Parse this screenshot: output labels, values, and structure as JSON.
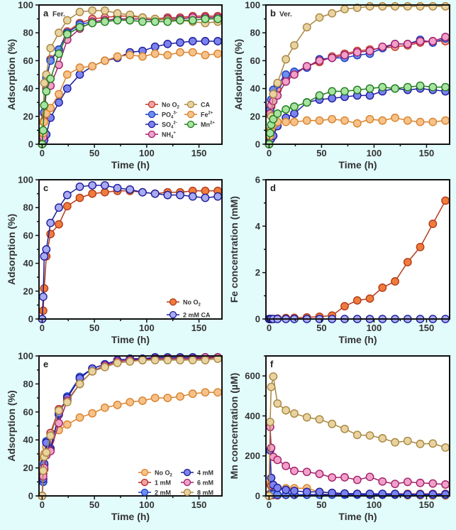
{
  "figure": {
    "background": "#e2fbfb"
  },
  "chart_data": [
    {
      "panel": "a",
      "type": "line",
      "title": "a",
      "subtitle": "Fer.",
      "xlabel": "Time (h)",
      "ylabel": "Adsorption (%)",
      "xlim": [
        -3,
        172
      ],
      "ylim": [
        0,
        100
      ],
      "xticks": [
        0,
        50,
        100,
        150
      ],
      "yticks": [
        0,
        20,
        40,
        60,
        80,
        100
      ],
      "grid": false,
      "legend_position": "bottom-right",
      "legend_columns": 2,
      "x": [
        0,
        1,
        2,
        4,
        8,
        16,
        24,
        36,
        48,
        60,
        72,
        84,
        96,
        108,
        120,
        132,
        144,
        156,
        168
      ],
      "series": [
        {
          "name": "No O₂",
          "label_base": "No O",
          "label_sub": "2",
          "label_sup": "",
          "color": "#c0392b",
          "fill": "#f4a3a0",
          "values": [
            0,
            6,
            22,
            45,
            61,
            68,
            81,
            87,
            90,
            91,
            92,
            92,
            91,
            90,
            91,
            91,
            92,
            92,
            92
          ]
        },
        {
          "name": "PO₄³⁻",
          "label_base": "PO",
          "label_sub": "4",
          "label_sup": "3-",
          "color": "#1a3bbf",
          "fill": "#6f8ff0",
          "values": [
            0,
            8,
            23,
            48,
            60,
            68,
            80,
            86,
            88,
            89,
            90,
            90,
            90,
            89,
            90,
            90,
            91,
            91,
            91
          ]
        },
        {
          "name": "SO₄²⁻",
          "label_base": "SO",
          "label_sub": "4",
          "label_sup": "2-",
          "color": "#1c1c9a",
          "fill": "#7b83ee",
          "values": [
            0,
            1,
            3,
            7,
            19,
            30,
            40,
            50,
            56,
            60,
            62,
            66,
            67,
            70,
            72,
            73,
            74,
            74,
            74
          ]
        },
        {
          "name": "NH₄⁺",
          "label_base": "NH",
          "label_sub": "4",
          "label_sup": "+",
          "color": "#a01f6a",
          "fill": "#f2a0c8",
          "values": [
            0,
            5,
            17,
            40,
            42,
            57,
            75,
            83,
            88,
            89,
            90,
            90,
            90,
            89,
            90,
            90,
            91,
            91,
            91
          ]
        },
        {
          "name": "CA",
          "label_base": "CA",
          "label_sub": "",
          "label_sup": "",
          "color": "#a88640",
          "fill": "#e8d3a0",
          "values": [
            0,
            16,
            44,
            50,
            69,
            80,
            89,
            95,
            96,
            96,
            94,
            93,
            91,
            90,
            89,
            89,
            88,
            87,
            88
          ]
        },
        {
          "name": "Fe²⁺",
          "label_base": "Fe",
          "label_sub": "",
          "label_sup": "2+",
          "color": "#d9822b",
          "fill": "#f6c28a",
          "values": [
            0,
            8,
            16,
            22,
            26,
            36,
            50,
            55,
            56,
            60,
            63,
            64,
            63,
            65,
            64,
            66,
            66,
            64,
            65
          ]
        },
        {
          "name": "Mn²⁺",
          "label_base": "Mn",
          "label_sub": "",
          "label_sup": "2+",
          "color": "#1e7a1e",
          "fill": "#a8e3a0",
          "values": [
            0,
            10,
            28,
            38,
            47,
            65,
            79,
            84,
            87,
            88,
            89,
            89,
            88,
            88,
            88,
            89,
            89,
            90,
            90
          ]
        }
      ]
    },
    {
      "panel": "b",
      "type": "line",
      "title": "b",
      "subtitle": "Ver.",
      "xlabel": "Time (h)",
      "ylabel": "Adsorption (%)",
      "xlim": [
        -3,
        172
      ],
      "ylim": [
        0,
        100
      ],
      "xticks": [
        0,
        50,
        100,
        150
      ],
      "yticks": [
        0,
        20,
        40,
        60,
        80,
        100
      ],
      "grid": false,
      "legend_position": "none",
      "x": [
        0,
        1,
        2,
        4,
        8,
        16,
        24,
        36,
        48,
        60,
        72,
        84,
        96,
        108,
        120,
        132,
        144,
        156,
        168
      ],
      "series": [
        {
          "name": "No O₂",
          "color": "#c0392b",
          "fill": "#f4a3a0",
          "values": [
            0,
            21,
            27,
            31,
            39,
            47,
            51,
            56,
            59,
            63,
            65,
            67,
            68,
            69,
            70,
            71,
            73,
            74,
            74
          ]
        },
        {
          "name": "PO₄³⁻",
          "color": "#1a3bbf",
          "fill": "#6f8ff0",
          "values": [
            0,
            25,
            32,
            39,
            43,
            50,
            52,
            55,
            61,
            62,
            62,
            64,
            65,
            69,
            72,
            72,
            75,
            73,
            76
          ]
        },
        {
          "name": "SO₄²⁻",
          "color": "#1c1c9a",
          "fill": "#7b83ee",
          "values": [
            0,
            3,
            4,
            6,
            13,
            19,
            22,
            30,
            32,
            33,
            34,
            35,
            35,
            38,
            40,
            39,
            40,
            39,
            38
          ]
        },
        {
          "name": "NH₄⁺",
          "color": "#a01f6a",
          "fill": "#f2a0c8",
          "values": [
            0,
            22,
            28,
            31,
            35,
            45,
            50,
            56,
            60,
            62,
            64,
            66,
            67,
            70,
            72,
            72,
            74,
            74,
            77
          ]
        },
        {
          "name": "CA",
          "color": "#a88640",
          "fill": "#e8d3a0",
          "values": [
            0,
            10,
            20,
            36,
            44,
            61,
            71,
            84,
            91,
            94,
            97,
            98,
            99,
            99,
            99,
            99,
            99,
            99,
            99
          ]
        },
        {
          "name": "Fe²⁺",
          "color": "#d9822b",
          "fill": "#f6c28a",
          "values": [
            0,
            6,
            11,
            14,
            16,
            16,
            16,
            17,
            17,
            18,
            17,
            15,
            18,
            17,
            19,
            17,
            16,
            16,
            17
          ]
        },
        {
          "name": "Mn²⁺",
          "color": "#1e7a1e",
          "fill": "#a8e3a0",
          "values": [
            0,
            8,
            14,
            18,
            22,
            25,
            27,
            30,
            35,
            38,
            38,
            39,
            40,
            41,
            40,
            41,
            42,
            41,
            41
          ]
        }
      ]
    },
    {
      "panel": "c",
      "type": "line",
      "title": "c",
      "subtitle": "",
      "xlabel": "Time (h)",
      "ylabel": "Adsorption (%)",
      "xlim": [
        -3,
        172
      ],
      "ylim": [
        0,
        100
      ],
      "xticks": [
        0,
        50,
        100,
        150
      ],
      "yticks": [
        0,
        20,
        40,
        60,
        80,
        100
      ],
      "grid": false,
      "legend_position": "bottom-right",
      "legend_columns": 1,
      "x": [
        0,
        1,
        2,
        4,
        8,
        16,
        24,
        36,
        48,
        60,
        72,
        84,
        96,
        108,
        120,
        132,
        144,
        156,
        168
      ],
      "series": [
        {
          "name": "No O₂",
          "label_base": "No O",
          "label_sub": "2",
          "label_sup": "",
          "color": "#b33a1a",
          "fill": "#f07c3c",
          "values": [
            0,
            6,
            22,
            45,
            61,
            68,
            81,
            87,
            90,
            91,
            92,
            92,
            91,
            90,
            91,
            91,
            92,
            92,
            92
          ]
        },
        {
          "name": "2 mM CA",
          "label_base": "2 mM CA",
          "label_sub": "",
          "label_sup": "",
          "color": "#1c1c9a",
          "fill": "#a9abf2",
          "values": [
            0,
            16,
            45,
            50,
            69,
            80,
            89,
            95,
            96,
            96,
            94,
            93,
            91,
            90,
            89,
            89,
            88,
            87,
            88
          ]
        }
      ]
    },
    {
      "panel": "d",
      "type": "line",
      "title": "d",
      "subtitle": "",
      "xlabel": "Time (h)",
      "ylabel": "Fe concentration (mM)",
      "xlim": [
        -3,
        172
      ],
      "ylim": [
        0,
        6
      ],
      "xticks": [
        0,
        50,
        100,
        150
      ],
      "yticks": [
        0,
        2,
        4,
        6
      ],
      "grid": false,
      "legend_position": "none",
      "x": [
        0,
        1,
        2,
        4,
        8,
        16,
        24,
        36,
        48,
        60,
        72,
        84,
        96,
        108,
        120,
        132,
        144,
        156,
        168
      ],
      "series": [
        {
          "name": "No O₂",
          "color": "#b33a1a",
          "fill": "#f07c3c",
          "values": [
            0,
            0,
            0,
            0,
            0.02,
            0.04,
            0.05,
            0.07,
            0.1,
            0.15,
            0.55,
            0.8,
            0.88,
            1.35,
            1.62,
            2.45,
            3.1,
            4.1,
            5.1
          ]
        },
        {
          "name": "2 mM CA",
          "color": "#1c1c9a",
          "fill": "#a9abf2",
          "values": [
            0,
            0,
            0,
            0,
            0,
            0,
            0,
            0,
            0,
            0,
            0,
            0,
            0,
            0,
            0,
            0,
            0,
            0,
            0
          ]
        }
      ]
    },
    {
      "panel": "e",
      "type": "line",
      "title": "e",
      "subtitle": "",
      "xlabel": "Time (h)",
      "ylabel": "Adsorption (%)",
      "xlim": [
        -3,
        172
      ],
      "ylim": [
        0,
        100
      ],
      "xticks": [
        0,
        50,
        100,
        150
      ],
      "yticks": [
        0,
        20,
        40,
        60,
        80,
        100
      ],
      "grid": false,
      "legend_position": "bottom-right",
      "legend_columns": 2,
      "x": [
        0,
        1,
        2,
        4,
        8,
        16,
        24,
        36,
        48,
        60,
        72,
        84,
        96,
        108,
        120,
        132,
        144,
        156,
        168
      ],
      "series": [
        {
          "name": "No O₂",
          "label_base": "No O",
          "label_sub": "2",
          "label_sup": "",
          "color": "#d9822b",
          "fill": "#f6c28a",
          "values": [
            0,
            27,
            30,
            35,
            40,
            47,
            51,
            56,
            59,
            63,
            65,
            67,
            68,
            70,
            70,
            71,
            73,
            74,
            74
          ]
        },
        {
          "name": "1 mM",
          "label_base": "1 mM",
          "label_sub": "",
          "label_sup": "",
          "color": "#b0262b",
          "fill": "#f4a3a0",
          "values": [
            0,
            16,
            19,
            30,
            45,
            62,
            68,
            80,
            89,
            93,
            96,
            97,
            98,
            98,
            98,
            98,
            98,
            98,
            99
          ]
        },
        {
          "name": "2 mM",
          "label_base": "2 mM",
          "label_sub": "",
          "label_sup": "",
          "color": "#1a3bbf",
          "fill": "#6f8ff0",
          "values": [
            0,
            10,
            22,
            39,
            34,
            58,
            71,
            85,
            91,
            94,
            97,
            98,
            98,
            99,
            99,
            99,
            99,
            99,
            99
          ]
        },
        {
          "name": "4 mM",
          "label_base": "4 mM",
          "label_sub": "",
          "label_sup": "",
          "color": "#1c1c9a",
          "fill": "#7b83ee",
          "values": [
            0,
            12,
            23,
            38,
            33,
            59,
            70,
            84,
            91,
            94,
            97,
            98,
            98,
            99,
            99,
            99,
            99,
            99,
            99
          ]
        },
        {
          "name": "6 mM",
          "label_base": "6 mM",
          "label_sub": "",
          "label_sup": "",
          "color": "#a01f6a",
          "fill": "#f2a0c8",
          "values": [
            0,
            14,
            20,
            29,
            32,
            52,
            68,
            80,
            89,
            93,
            96,
            97,
            97,
            98,
            98,
            98,
            98,
            99,
            99
          ]
        },
        {
          "name": "8 mM",
          "label_base": "8 mM",
          "label_sub": "",
          "label_sup": "",
          "color": "#a88640",
          "fill": "#e8d3a0",
          "values": [
            0,
            18,
            28,
            31,
            43,
            61,
            67,
            80,
            89,
            92,
            95,
            96,
            97,
            97,
            97,
            97,
            97,
            97,
            98
          ]
        }
      ]
    },
    {
      "panel": "f",
      "type": "line",
      "title": "f",
      "subtitle": "",
      "xlabel": "Time (h)",
      "ylabel": "Mn concentration (µM)",
      "xlim": [
        -3,
        172
      ],
      "ylim": [
        0,
        700
      ],
      "xticks": [
        0,
        50,
        100,
        150
      ],
      "yticks": [
        0,
        200,
        400,
        600
      ],
      "grid": false,
      "legend_position": "none",
      "x": [
        0,
        1,
        2,
        4,
        8,
        16,
        24,
        36,
        48,
        60,
        72,
        84,
        96,
        108,
        120,
        132,
        144,
        156,
        168
      ],
      "series": [
        {
          "name": "No O₂",
          "color": "#d9822b",
          "fill": "#f6c28a",
          "values": [
            0,
            60,
            55,
            45,
            40,
            38,
            38,
            38,
            20,
            15,
            12,
            10,
            5,
            5,
            5,
            3,
            3,
            2,
            2
          ]
        },
        {
          "name": "1 mM",
          "color": "#b0262b",
          "fill": "#f4a3a0",
          "values": [
            0,
            10,
            50,
            5,
            3,
            5,
            5,
            6,
            8,
            8,
            10,
            10,
            10,
            10,
            10,
            10,
            10,
            10,
            10
          ]
        },
        {
          "name": "2 mM",
          "color": "#1a3bbf",
          "fill": "#6f8ff0",
          "values": [
            0,
            5,
            10,
            8,
            6,
            6,
            6,
            6,
            6,
            6,
            6,
            6,
            6,
            6,
            6,
            6,
            6,
            6,
            6
          ]
        },
        {
          "name": "4 mM",
          "color": "#1c1c9a",
          "fill": "#7b83ee",
          "values": [
            0,
            228,
            90,
            55,
            40,
            30,
            25,
            20,
            20,
            15,
            12,
            10,
            10,
            10,
            10,
            8,
            8,
            8,
            8
          ]
        },
        {
          "name": "6 mM",
          "color": "#a01f6a",
          "fill": "#f2a0c8",
          "values": [
            0,
            345,
            240,
            195,
            180,
            150,
            125,
            120,
            110,
            92,
            93,
            80,
            95,
            72,
            60,
            70,
            65,
            62,
            57
          ]
        },
        {
          "name": "8 mM",
          "color": "#a88640",
          "fill": "#e8d3a0",
          "values": [
            0,
            370,
            545,
            597,
            462,
            428,
            412,
            393,
            383,
            360,
            335,
            305,
            302,
            288,
            268,
            275,
            260,
            262,
            242
          ]
        }
      ]
    }
  ]
}
